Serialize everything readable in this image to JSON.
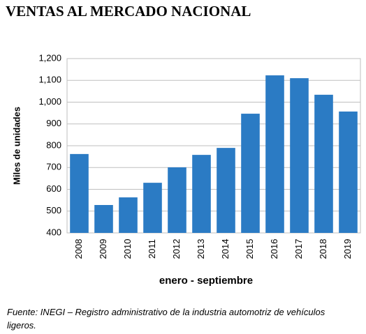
{
  "chart_data": {
    "type": "bar",
    "title": "VENTAS AL MERCADO NACIONAL",
    "x_label": "enero - septiembre",
    "y_label": "Miles de unidades",
    "source": "Fuente: INEGI – Registro administrativo de la industria automotriz de vehículos ligeros.",
    "categories": [
      "2008",
      "2009",
      "2010",
      "2011",
      "2012",
      "2013",
      "2014",
      "2015",
      "2016",
      "2017",
      "2018",
      "2019"
    ],
    "values": [
      762,
      528,
      563,
      630,
      701,
      758,
      790,
      947,
      1123,
      1110,
      1034,
      957
    ],
    "color": "#2b7bc4",
    "ylim": [
      400,
      1200
    ],
    "yticks": [
      400,
      500,
      600,
      700,
      800,
      900,
      {
        "value": 1000,
        "label": "1,000"
      },
      {
        "value": 1100,
        "label": "1,100"
      },
      {
        "value": 1200,
        "label": "1,200"
      }
    ],
    "grid": true
  }
}
